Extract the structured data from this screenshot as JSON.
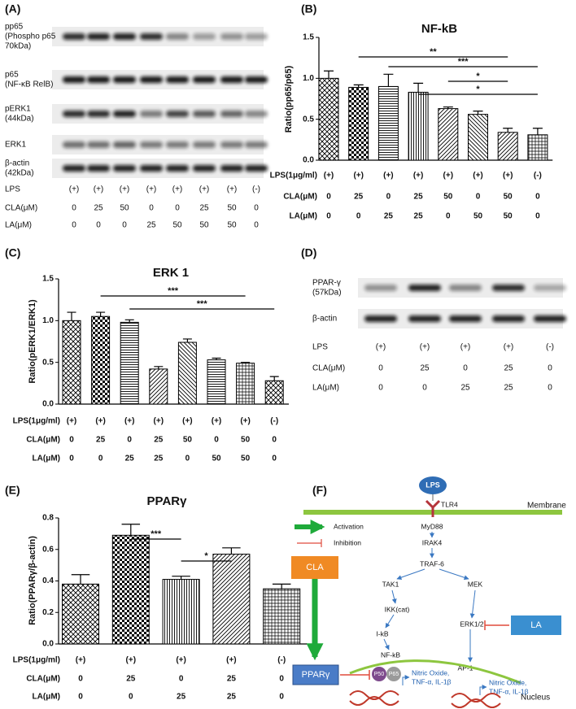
{
  "panel_labels": [
    "(A)",
    "(B)",
    "(C)",
    "(D)",
    "(E)",
    "(F)"
  ],
  "blot_a": {
    "rows": [
      [
        "pp65",
        "(Phospho p65",
        "70kDa)"
      ],
      [
        "p65",
        "(NF-κB RelB)"
      ],
      [
        "pERK1",
        "(44kDa)"
      ],
      [
        "ERK1"
      ],
      [
        "β-actin",
        "(42kDa)"
      ]
    ],
    "conditions": [
      {
        "label": "LPS",
        "values": [
          "(+)",
          "(+)",
          "(+)",
          "(+)",
          "(+)",
          "(+)",
          "(+)",
          "(-)"
        ]
      },
      {
        "label": "CLA(μM)",
        "values": [
          0,
          25,
          50,
          0,
          0,
          25,
          50,
          0
        ]
      },
      {
        "label": "LA(μM)",
        "values": [
          0,
          0,
          0,
          25,
          50,
          50,
          50,
          0
        ]
      }
    ]
  },
  "blot_d": {
    "rows": [
      [
        "PPAR-γ",
        "(57kDa)"
      ],
      [
        "β-actin"
      ]
    ],
    "conditions": [
      {
        "label": "LPS",
        "values": [
          "(+)",
          "(+)",
          "(+)",
          "(+)",
          "(-)"
        ]
      },
      {
        "label": "CLA(μM)",
        "values": [
          0,
          25,
          0,
          25,
          0
        ]
      },
      {
        "label": "LA(μM)",
        "values": [
          0,
          0,
          25,
          25,
          0
        ]
      }
    ]
  },
  "chart_data": [
    {
      "type": "bar",
      "title": "NF-kB",
      "y_label": "Ratio(pp65/p65)",
      "values": [
        1.0,
        0.89,
        0.9,
        0.83,
        0.63,
        0.56,
        0.34,
        0.31
      ],
      "errors": [
        0.09,
        0.03,
        0.15,
        0.11,
        0.02,
        0.04,
        0.05,
        0.08
      ],
      "ylim": [
        0,
        1.5
      ],
      "yticks": [
        {
          "value": 0,
          "label": "0.0"
        },
        {
          "value": 0.5,
          "label": "0.5"
        },
        {
          "value": 1,
          "label": "1.0"
        },
        {
          "value": 1.5,
          "label": "1.5"
        }
      ],
      "annotations": [
        "**",
        "***",
        "*",
        "*"
      ],
      "conditions": [
        {
          "label": "LPS(1μg/ml)",
          "values": [
            "(+)",
            "(+)",
            "(+)",
            "(+)",
            "(+)",
            "(+)",
            "(+)",
            "(-)"
          ]
        },
        {
          "label": "CLA(μM)",
          "values": [
            0,
            25,
            0,
            25,
            50,
            0,
            50,
            0
          ]
        },
        {
          "label": "LA(μM)",
          "values": [
            0,
            0,
            25,
            25,
            0,
            50,
            50,
            0
          ]
        }
      ]
    },
    {
      "type": "bar",
      "title": "ERK 1",
      "y_label": "Ratio(pERK1/ERK1)",
      "values": [
        1.0,
        1.05,
        0.98,
        0.42,
        0.74,
        0.53,
        0.49,
        0.28
      ],
      "errors": [
        0.1,
        0.05,
        0.03,
        0.03,
        0.04,
        0.02,
        0.01,
        0.05
      ],
      "ylim": [
        0,
        1.5
      ],
      "yticks": [
        {
          "value": 0,
          "label": "0.0"
        },
        {
          "value": 0.5,
          "label": "0.5"
        },
        {
          "value": 1,
          "label": "1.0"
        },
        {
          "value": 1.5,
          "label": "1.5"
        }
      ],
      "annotations": [
        "***",
        "***"
      ],
      "conditions": [
        {
          "label": "LPS(1μg/ml)",
          "values": [
            "(+)",
            "(+)",
            "(+)",
            "(+)",
            "(+)",
            "(+)",
            "(+)",
            "(-)"
          ]
        },
        {
          "label": "CLA(μM)",
          "values": [
            0,
            25,
            0,
            25,
            50,
            0,
            50,
            0
          ]
        },
        {
          "label": "LA(μM)",
          "values": [
            0,
            0,
            25,
            25,
            0,
            50,
            50,
            0
          ]
        }
      ]
    },
    {
      "type": "bar",
      "title": "PPARγ",
      "y_label": "Ratio(PPARγ/β-actin)",
      "values": [
        0.38,
        0.69,
        0.41,
        0.57,
        0.35
      ],
      "errors": [
        0.06,
        0.07,
        0.02,
        0.04,
        0.03
      ],
      "ylim": [
        0,
        0.8
      ],
      "yticks": [
        {
          "value": 0,
          "label": "0.0"
        },
        {
          "value": 0.2,
          "label": "0.2"
        },
        {
          "value": 0.4,
          "label": "0.4"
        },
        {
          "value": 0.6,
          "label": "0.6"
        },
        {
          "value": 0.8,
          "label": "0.8"
        }
      ],
      "annotations": [
        "***",
        "*"
      ],
      "conditions": [
        {
          "label": "LPS(1μg/ml)",
          "values": [
            "(+)",
            "(+)",
            "(+)",
            "(+)",
            "(-)"
          ]
        },
        {
          "label": "CLA(μM)",
          "values": [
            0,
            25,
            0,
            25,
            0
          ]
        },
        {
          "label": "LA(μM)",
          "values": [
            0,
            0,
            25,
            25,
            0
          ]
        }
      ]
    }
  ],
  "pathway": {
    "lps": "LPS",
    "tlr4": "TLR4",
    "membrane": "Membrane",
    "myd88": "MyD88",
    "irak4": "IRAK4",
    "traf6": "TRAF-6",
    "tak1": "TAK1",
    "mek": "MEK",
    "ikk": "IKK(cat)",
    "erk": "ERK1/2",
    "ikb": "I-kB",
    "nfkb": "NF-kB",
    "ap1": "AP-1",
    "cla": "CLA",
    "la": "LA",
    "ppar": "PPARγ",
    "p50": "P50",
    "p65": "P65",
    "products_left": [
      "Nitric Oxide,",
      "TNF-α, IL-1β"
    ],
    "products_right": [
      "Nitric Oxide,",
      "TNF-α, IL-1β"
    ],
    "nucleus": "Nucleus",
    "legend_activation": "Activation",
    "legend_inhibition": "Inhibition"
  }
}
